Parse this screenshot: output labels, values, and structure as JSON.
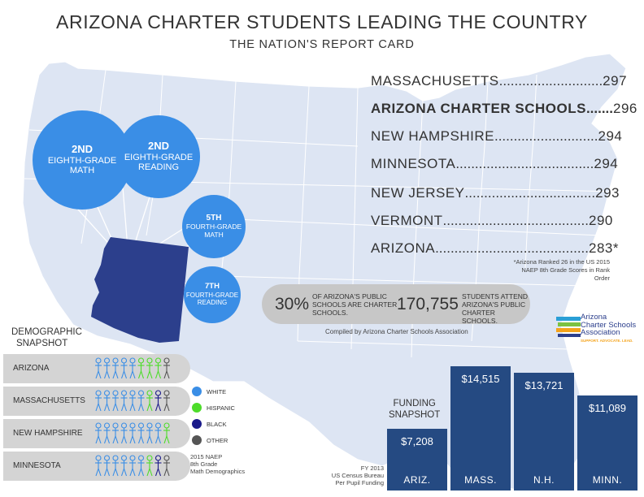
{
  "header": {
    "title": "ARIZONA CHARTER STUDENTS LEADING THE COUNTRY",
    "subtitle": "THE NATION'S REPORT CARD"
  },
  "circles": [
    {
      "rank": "2ND",
      "line1": "EIGHTH-GRADE",
      "line2": "MATH"
    },
    {
      "rank": "2ND",
      "line1": "EIGHTH-GRADE",
      "line2": "READING"
    },
    {
      "rank": "5TH",
      "line1": "FOURTH-GRADE",
      "line2": "MATH"
    },
    {
      "rank": "7TH",
      "line1": "FOURTH-GRADE",
      "line2": "READING"
    }
  ],
  "rankings": [
    {
      "name": "MASSACHUSETTS",
      "dots": "...........................",
      "score": "297",
      "bold": false
    },
    {
      "name": "ARIZONA CHARTER SCHOOLS",
      "dots": ".......",
      "score": "296",
      "bold": true
    },
    {
      "name": "NEW HAMPSHIRE",
      "dots": "...........................",
      "score": "294",
      "bold": false
    },
    {
      "name": "MINNESOTA",
      "dots": "....................................",
      "score": "294",
      "bold": false
    },
    {
      "name": "NEW JERSEY",
      "dots": "..................................",
      "score": "293",
      "bold": false
    },
    {
      "name": "VERMONT",
      "dots": "......................................",
      "score": "290",
      "bold": false
    },
    {
      "name": "ARIZONA",
      "dots": "........................................",
      "score": "283*",
      "bold": false
    }
  ],
  "rank_note": "*Arizona Ranked 26 in the US 2015 NAEP 8th Grade Scores in Rank Order",
  "stats": {
    "pct": "30%",
    "pct_text": "OF ARIZONA'S PUBLIC SCHOOLS ARE CHARTER SCHOOLS.",
    "count": "170,755",
    "count_text": "STUDENTS ATTEND ARIZONA'S PUBLIC CHARTER SCHOOLS."
  },
  "compiled_by": "Compiled by Arizona Charter Schools Association",
  "logo": {
    "line1": "Arizona",
    "line2": "Charter Schools",
    "line3": "Association",
    "tagline": "SUPPORT. ADVOCATE. LEAD."
  },
  "demographics": {
    "title_line1": "DEMOGRAPHIC",
    "title_line2": "SNAPSHOT",
    "rows": [
      {
        "state": "ARIZONA",
        "white": 5,
        "hispanic": 3,
        "black": 0,
        "other": 1
      },
      {
        "state": "MASSACHUSETTS",
        "white": 6,
        "hispanic": 1,
        "black": 1,
        "other": 1
      },
      {
        "state": "NEW HAMPSHIRE",
        "white": 8,
        "hispanic": 1,
        "black": 0,
        "other": 0
      },
      {
        "state": "MINNESOTA",
        "white": 6,
        "hispanic": 1,
        "black": 1,
        "other": 1
      }
    ],
    "legend": [
      {
        "label": "WHITE",
        "color": "#3a8ee6"
      },
      {
        "label": "HISPANIC",
        "color": "#4ddc2a"
      },
      {
        "label": "BLACK",
        "color": "#1a1a8a"
      },
      {
        "label": "OTHER",
        "color": "#555555"
      }
    ],
    "note_line1": "2015 NAEP",
    "note_line2": "8th Grade",
    "note_line3": "Math Demographics"
  },
  "funding": {
    "title_line1": "FUNDING",
    "title_line2": "SNAPSHOT",
    "note_line1": "FY 2013",
    "note_line2": "US Census Bureau",
    "note_line3": "Per Pupil Funding"
  },
  "colors": {
    "map_fill": "#dde5f3",
    "map_stroke": "#ffffff",
    "arizona": "#2c3f8c",
    "circle": "#3a8ee6",
    "bar": "#254a82"
  },
  "chart_data": {
    "type": "bar",
    "categories": [
      "ARIZ.",
      "MASS.",
      "N.H.",
      "MINN."
    ],
    "values": [
      7208,
      14515,
      13721,
      11089
    ],
    "value_labels": [
      "$7,208",
      "$14,515",
      "$13,721",
      "$11,089"
    ],
    "title": "",
    "xlabel": "",
    "ylabel": "",
    "ylim": [
      0,
      15000
    ],
    "grid": false,
    "legend": "none"
  }
}
